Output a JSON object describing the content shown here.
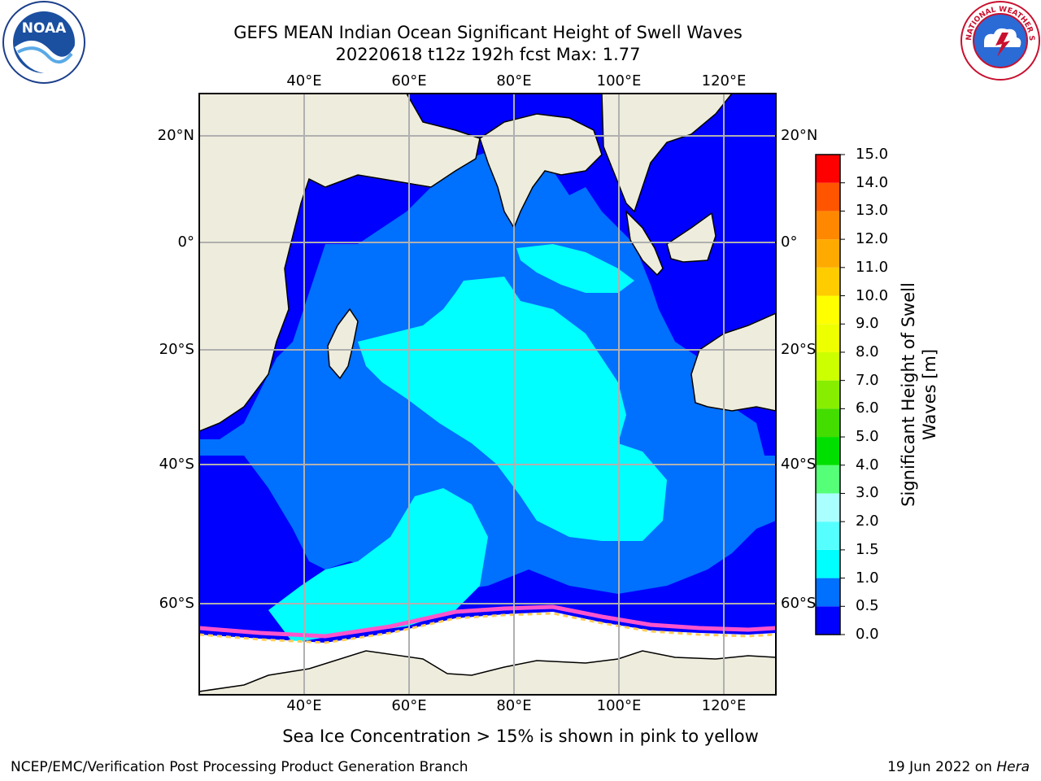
{
  "header": {
    "title_line1": "GEFS MEAN Indian Ocean Significant Height of Swell Waves",
    "title_line2": "20220618 t12z 192h fcst   Max: 1.77"
  },
  "logos": {
    "left": "NOAA",
    "right": "NATIONAL WEATHER SERVICE"
  },
  "map": {
    "lon_ticks": [
      "40°E",
      "60°E",
      "80°E",
      "100°E",
      "120°E"
    ],
    "lat_ticks_left": [
      "20°N",
      "0°",
      "20°S",
      "40°S",
      "60°S"
    ],
    "lat_ticks_right": [
      "20°N",
      "0°",
      "20°S",
      "40°S",
      "60°S"
    ],
    "colors": {
      "land": "#eeecdc",
      "ice_none": "#ffffff",
      "grid": "#b0b0b0"
    }
  },
  "colorbar": {
    "label": "Significant Height of Swell Waves [m]",
    "levels": [
      "0.0",
      "0.5",
      "1.0",
      "1.5",
      "2.0",
      "3.0",
      "4.0",
      "5.0",
      "6.0",
      "7.0",
      "8.0",
      "9.0",
      "10.0",
      "11.0",
      "12.0",
      "13.0",
      "14.0",
      "15.0"
    ],
    "colors": [
      "#0000ff",
      "#0070ff",
      "#00ffff",
      "#55ffff",
      "#aaffff",
      "#55ff77",
      "#00e000",
      "#44dd00",
      "#88ee00",
      "#ccff00",
      "#eeff00",
      "#ffff00",
      "#ffcc00",
      "#ffaa00",
      "#ff8800",
      "#ff5500",
      "#ff0000"
    ]
  },
  "footer": {
    "note": "Sea Ice Concentration > 15% is shown in pink to yellow",
    "left": "NCEP/EMC/Verification Post Processing Product Generation Branch",
    "right_date": "19 Jun 2022 on ",
    "right_machine": "Hera"
  }
}
